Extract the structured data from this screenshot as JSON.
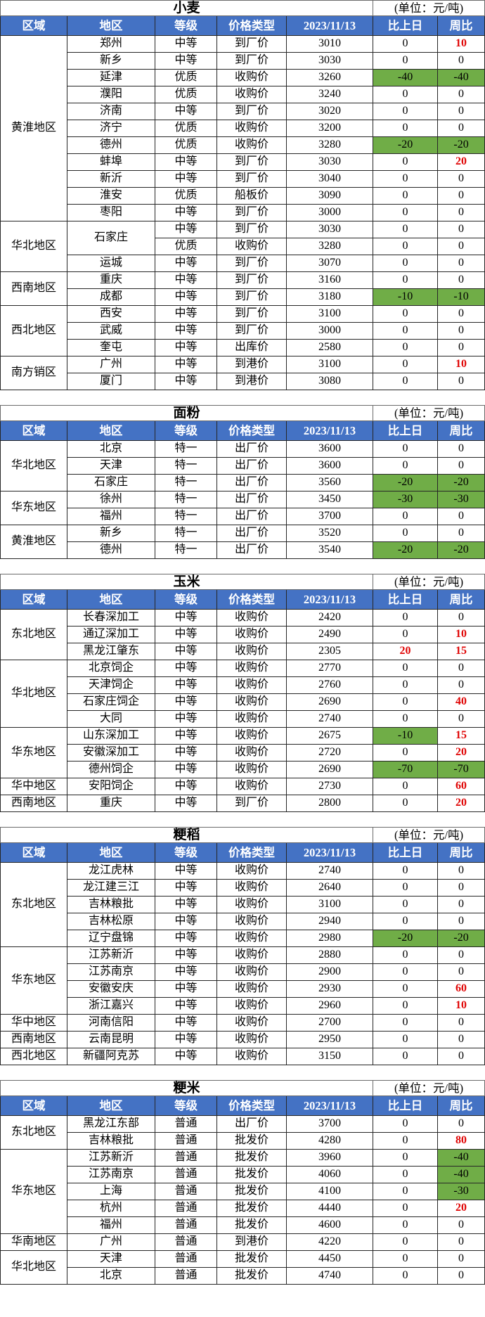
{
  "unit_label": "(单位：元/吨)",
  "columns": [
    "区域",
    "地区",
    "等级",
    "价格类型",
    "2023/11/13",
    "比上日",
    "周比"
  ],
  "colors": {
    "header_bg": "#4472c4",
    "header_text": "#ffffff",
    "down_cell_bg": "#70ad47",
    "up_text": "#e00505",
    "border": "#262626"
  },
  "sections": [
    {
      "title": "小麦",
      "groups": [
        {
          "region": "黄淮地区",
          "rows": [
            {
              "area": "郑州",
              "span": 1,
              "grade": "中等",
              "type": "到厂价",
              "price": "3010",
              "d1": "0",
              "d1s": "",
              "d7": "10",
              "d7s": "r"
            },
            {
              "area": "新乡",
              "span": 1,
              "grade": "中等",
              "type": "到厂价",
              "price": "3030",
              "d1": "0",
              "d1s": "",
              "d7": "0",
              "d7s": ""
            },
            {
              "area": "延津",
              "span": 1,
              "grade": "优质",
              "type": "收购价",
              "price": "3260",
              "d1": "-40",
              "d1s": "g",
              "d7": "-40",
              "d7s": "g"
            },
            {
              "area": "濮阳",
              "span": 1,
              "grade": "优质",
              "type": "收购价",
              "price": "3240",
              "d1": "0",
              "d1s": "",
              "d7": "0",
              "d7s": ""
            },
            {
              "area": "济南",
              "span": 1,
              "grade": "中等",
              "type": "到厂价",
              "price": "3020",
              "d1": "0",
              "d1s": "",
              "d7": "0",
              "d7s": ""
            },
            {
              "area": "济宁",
              "span": 1,
              "grade": "优质",
              "type": "收购价",
              "price": "3200",
              "d1": "0",
              "d1s": "",
              "d7": "0",
              "d7s": ""
            },
            {
              "area": "德州",
              "span": 1,
              "grade": "优质",
              "type": "收购价",
              "price": "3280",
              "d1": "-20",
              "d1s": "g",
              "d7": "-20",
              "d7s": "g"
            },
            {
              "area": "蚌埠",
              "span": 1,
              "grade": "中等",
              "type": "到厂价",
              "price": "3030",
              "d1": "0",
              "d1s": "",
              "d7": "20",
              "d7s": "r"
            },
            {
              "area": "新沂",
              "span": 1,
              "grade": "中等",
              "type": "到厂价",
              "price": "3040",
              "d1": "0",
              "d1s": "",
              "d7": "0",
              "d7s": ""
            },
            {
              "area": "淮安",
              "span": 1,
              "grade": "优质",
              "type": "船板价",
              "price": "3090",
              "d1": "0",
              "d1s": "",
              "d7": "0",
              "d7s": ""
            },
            {
              "area": "枣阳",
              "span": 1,
              "grade": "中等",
              "type": "到厂价",
              "price": "3000",
              "d1": "0",
              "d1s": "",
              "d7": "0",
              "d7s": ""
            }
          ]
        },
        {
          "region": "华北地区",
          "rows": [
            {
              "area": "石家庄",
              "span": 2,
              "grade": "中等",
              "type": "到厂价",
              "price": "3030",
              "d1": "0",
              "d1s": "",
              "d7": "0",
              "d7s": ""
            },
            {
              "area": "",
              "span": 0,
              "grade": "优质",
              "type": "收购价",
              "price": "3280",
              "d1": "0",
              "d1s": "",
              "d7": "0",
              "d7s": ""
            },
            {
              "area": "运城",
              "span": 1,
              "grade": "中等",
              "type": "到厂价",
              "price": "3070",
              "d1": "0",
              "d1s": "",
              "d7": "0",
              "d7s": ""
            }
          ]
        },
        {
          "region": "西南地区",
          "rows": [
            {
              "area": "重庆",
              "span": 1,
              "grade": "中等",
              "type": "到厂价",
              "price": "3160",
              "d1": "0",
              "d1s": "",
              "d7": "0",
              "d7s": ""
            },
            {
              "area": "成都",
              "span": 1,
              "grade": "中等",
              "type": "到厂价",
              "price": "3180",
              "d1": "-10",
              "d1s": "g",
              "d7": "-10",
              "d7s": "g"
            }
          ]
        },
        {
          "region": "西北地区",
          "rows": [
            {
              "area": "西安",
              "span": 1,
              "grade": "中等",
              "type": "到厂价",
              "price": "3100",
              "d1": "0",
              "d1s": "",
              "d7": "0",
              "d7s": ""
            },
            {
              "area": "武威",
              "span": 1,
              "grade": "中等",
              "type": "到厂价",
              "price": "3000",
              "d1": "0",
              "d1s": "",
              "d7": "0",
              "d7s": ""
            },
            {
              "area": "奎屯",
              "span": 1,
              "grade": "中等",
              "type": "出库价",
              "price": "2580",
              "d1": "0",
              "d1s": "",
              "d7": "0",
              "d7s": ""
            }
          ]
        },
        {
          "region": "南方销区",
          "rows": [
            {
              "area": "广州",
              "span": 1,
              "grade": "中等",
              "type": "到港价",
              "price": "3100",
              "d1": "0",
              "d1s": "",
              "d7": "10",
              "d7s": "r"
            },
            {
              "area": "厦门",
              "span": 1,
              "grade": "中等",
              "type": "到港价",
              "price": "3080",
              "d1": "0",
              "d1s": "",
              "d7": "0",
              "d7s": ""
            }
          ]
        }
      ]
    },
    {
      "title": "面粉",
      "groups": [
        {
          "region": "华北地区",
          "rows": [
            {
              "area": "北京",
              "span": 1,
              "grade": "特一",
              "type": "出厂价",
              "price": "3600",
              "d1": "0",
              "d1s": "",
              "d7": "0",
              "d7s": ""
            },
            {
              "area": "天津",
              "span": 1,
              "grade": "特一",
              "type": "出厂价",
              "price": "3600",
              "d1": "0",
              "d1s": "",
              "d7": "0",
              "d7s": ""
            },
            {
              "area": "石家庄",
              "span": 1,
              "grade": "特一",
              "type": "出厂价",
              "price": "3560",
              "d1": "-20",
              "d1s": "g",
              "d7": "-20",
              "d7s": "g"
            }
          ]
        },
        {
          "region": "华东地区",
          "rows": [
            {
              "area": "徐州",
              "span": 1,
              "grade": "特一",
              "type": "出厂价",
              "price": "3450",
              "d1": "-30",
              "d1s": "g",
              "d7": "-30",
              "d7s": "g"
            },
            {
              "area": "福州",
              "span": 1,
              "grade": "特一",
              "type": "出厂价",
              "price": "3700",
              "d1": "0",
              "d1s": "",
              "d7": "0",
              "d7s": ""
            }
          ]
        },
        {
          "region": "黄淮地区",
          "rows": [
            {
              "area": "新乡",
              "span": 1,
              "grade": "特一",
              "type": "出厂价",
              "price": "3520",
              "d1": "0",
              "d1s": "",
              "d7": "0",
              "d7s": ""
            },
            {
              "area": "德州",
              "span": 1,
              "grade": "特一",
              "type": "出厂价",
              "price": "3540",
              "d1": "-20",
              "d1s": "g",
              "d7": "-20",
              "d7s": "g"
            }
          ]
        }
      ]
    },
    {
      "title": "玉米",
      "groups": [
        {
          "region": "东北地区",
          "rows": [
            {
              "area": "长春深加工",
              "span": 1,
              "grade": "中等",
              "type": "收购价",
              "price": "2420",
              "d1": "0",
              "d1s": "",
              "d7": "0",
              "d7s": ""
            },
            {
              "area": "通辽深加工",
              "span": 1,
              "grade": "中等",
              "type": "收购价",
              "price": "2490",
              "d1": "0",
              "d1s": "",
              "d7": "10",
              "d7s": "r"
            },
            {
              "area": "黑龙江肇东",
              "span": 1,
              "grade": "中等",
              "type": "收购价",
              "price": "2305",
              "d1": "20",
              "d1s": "r",
              "d7": "15",
              "d7s": "r"
            }
          ]
        },
        {
          "region": "华北地区",
          "rows": [
            {
              "area": "北京饲企",
              "span": 1,
              "grade": "中等",
              "type": "收购价",
              "price": "2770",
              "d1": "0",
              "d1s": "",
              "d7": "0",
              "d7s": ""
            },
            {
              "area": "天津饲企",
              "span": 1,
              "grade": "中等",
              "type": "收购价",
              "price": "2760",
              "d1": "0",
              "d1s": "",
              "d7": "0",
              "d7s": ""
            },
            {
              "area": "石家庄饲企",
              "span": 1,
              "grade": "中等",
              "type": "收购价",
              "price": "2690",
              "d1": "0",
              "d1s": "",
              "d7": "40",
              "d7s": "r"
            },
            {
              "area": "大同",
              "span": 1,
              "grade": "中等",
              "type": "收购价",
              "price": "2740",
              "d1": "0",
              "d1s": "",
              "d7": "0",
              "d7s": ""
            }
          ]
        },
        {
          "region": "华东地区",
          "rows": [
            {
              "area": "山东深加工",
              "span": 1,
              "grade": "中等",
              "type": "收购价",
              "price": "2675",
              "d1": "-10",
              "d1s": "g",
              "d7": "15",
              "d7s": "r"
            },
            {
              "area": "安徽深加工",
              "span": 1,
              "grade": "中等",
              "type": "收购价",
              "price": "2720",
              "d1": "0",
              "d1s": "",
              "d7": "20",
              "d7s": "r"
            },
            {
              "area": "德州饲企",
              "span": 1,
              "grade": "中等",
              "type": "收购价",
              "price": "2690",
              "d1": "-70",
              "d1s": "g",
              "d7": "-70",
              "d7s": "g"
            }
          ]
        },
        {
          "region": "华中地区",
          "rows": [
            {
              "area": "安阳饲企",
              "span": 1,
              "grade": "中等",
              "type": "收购价",
              "price": "2730",
              "d1": "0",
              "d1s": "",
              "d7": "60",
              "d7s": "r"
            }
          ]
        },
        {
          "region": "西南地区",
          "rows": [
            {
              "area": "重庆",
              "span": 1,
              "grade": "中等",
              "type": "到厂价",
              "price": "2800",
              "d1": "0",
              "d1s": "",
              "d7": "20",
              "d7s": "r"
            }
          ]
        }
      ]
    },
    {
      "title": "粳稻",
      "groups": [
        {
          "region": "东北地区",
          "rows": [
            {
              "area": "龙江虎林",
              "span": 1,
              "grade": "中等",
              "type": "收购价",
              "price": "2740",
              "d1": "0",
              "d1s": "",
              "d7": "0",
              "d7s": ""
            },
            {
              "area": "龙江建三江",
              "span": 1,
              "grade": "中等",
              "type": "收购价",
              "price": "2640",
              "d1": "0",
              "d1s": "",
              "d7": "0",
              "d7s": ""
            },
            {
              "area": "吉林粮批",
              "span": 1,
              "grade": "中等",
              "type": "收购价",
              "price": "3100",
              "d1": "0",
              "d1s": "",
              "d7": "0",
              "d7s": ""
            },
            {
              "area": "吉林松原",
              "span": 1,
              "grade": "中等",
              "type": "收购价",
              "price": "2940",
              "d1": "0",
              "d1s": "",
              "d7": "0",
              "d7s": ""
            },
            {
              "area": "辽宁盘锦",
              "span": 1,
              "grade": "中等",
              "type": "收购价",
              "price": "2980",
              "d1": "-20",
              "d1s": "g",
              "d7": "-20",
              "d7s": "g"
            }
          ]
        },
        {
          "region": "华东地区",
          "rows": [
            {
              "area": "江苏新沂",
              "span": 1,
              "grade": "中等",
              "type": "收购价",
              "price": "2880",
              "d1": "0",
              "d1s": "",
              "d7": "0",
              "d7s": ""
            },
            {
              "area": "江苏南京",
              "span": 1,
              "grade": "中等",
              "type": "收购价",
              "price": "2900",
              "d1": "0",
              "d1s": "",
              "d7": "0",
              "d7s": ""
            },
            {
              "area": "安徽安庆",
              "span": 1,
              "grade": "中等",
              "type": "收购价",
              "price": "2930",
              "d1": "0",
              "d1s": "",
              "d7": "60",
              "d7s": "r"
            },
            {
              "area": "浙江嘉兴",
              "span": 1,
              "grade": "中等",
              "type": "收购价",
              "price": "2960",
              "d1": "0",
              "d1s": "",
              "d7": "10",
              "d7s": "r"
            }
          ]
        },
        {
          "region": "华中地区",
          "rows": [
            {
              "area": "河南信阳",
              "span": 1,
              "grade": "中等",
              "type": "收购价",
              "price": "2700",
              "d1": "0",
              "d1s": "",
              "d7": "0",
              "d7s": ""
            }
          ]
        },
        {
          "region": "西南地区",
          "rows": [
            {
              "area": "云南昆明",
              "span": 1,
              "grade": "中等",
              "type": "收购价",
              "price": "2950",
              "d1": "0",
              "d1s": "",
              "d7": "0",
              "d7s": ""
            }
          ]
        },
        {
          "region": "西北地区",
          "rows": [
            {
              "area": "新疆阿克苏",
              "span": 1,
              "grade": "中等",
              "type": "收购价",
              "price": "3150",
              "d1": "0",
              "d1s": "",
              "d7": "0",
              "d7s": ""
            }
          ]
        }
      ]
    },
    {
      "title": "粳米",
      "groups": [
        {
          "region": "东北地区",
          "rows": [
            {
              "area": "黑龙江东部",
              "span": 1,
              "grade": "普通",
              "type": "出厂价",
              "price": "3700",
              "d1": "0",
              "d1s": "",
              "d7": "0",
              "d7s": ""
            },
            {
              "area": "吉林粮批",
              "span": 1,
              "grade": "普通",
              "type": "批发价",
              "price": "4280",
              "d1": "0",
              "d1s": "",
              "d7": "80",
              "d7s": "r"
            }
          ]
        },
        {
          "region": "华东地区",
          "rows": [
            {
              "area": "江苏新沂",
              "span": 1,
              "grade": "普通",
              "type": "批发价",
              "price": "3960",
              "d1": "0",
              "d1s": "",
              "d7": "-40",
              "d7s": "g"
            },
            {
              "area": "江苏南京",
              "span": 1,
              "grade": "普通",
              "type": "批发价",
              "price": "4060",
              "d1": "0",
              "d1s": "",
              "d7": "-40",
              "d7s": "g"
            },
            {
              "area": "上海",
              "span": 1,
              "grade": "普通",
              "type": "批发价",
              "price": "4100",
              "d1": "0",
              "d1s": "",
              "d7": "-30",
              "d7s": "g"
            },
            {
              "area": "杭州",
              "span": 1,
              "grade": "普通",
              "type": "批发价",
              "price": "4440",
              "d1": "0",
              "d1s": "",
              "d7": "20",
              "d7s": "r"
            },
            {
              "area": "福州",
              "span": 1,
              "grade": "普通",
              "type": "批发价",
              "price": "4600",
              "d1": "0",
              "d1s": "",
              "d7": "0",
              "d7s": ""
            }
          ]
        },
        {
          "region": "华南地区",
          "rows": [
            {
              "area": "广州",
              "span": 1,
              "grade": "普通",
              "type": "到港价",
              "price": "4220",
              "d1": "0",
              "d1s": "",
              "d7": "0",
              "d7s": ""
            }
          ]
        },
        {
          "region": "华北地区",
          "rows": [
            {
              "area": "天津",
              "span": 1,
              "grade": "普通",
              "type": "批发价",
              "price": "4450",
              "d1": "0",
              "d1s": "",
              "d7": "0",
              "d7s": ""
            },
            {
              "area": "北京",
              "span": 1,
              "grade": "普通",
              "type": "批发价",
              "price": "4740",
              "d1": "0",
              "d1s": "",
              "d7": "0",
              "d7s": ""
            }
          ]
        }
      ]
    }
  ]
}
